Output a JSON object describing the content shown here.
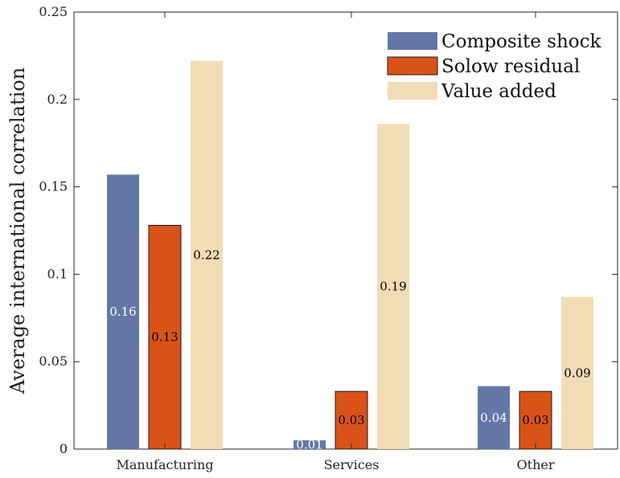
{
  "chart_data": {
    "type": "bar",
    "categories": [
      "Manufacturing",
      "Services",
      "Other"
    ],
    "series": [
      {
        "name": "Composite shock",
        "values": [
          0.157,
          0.005,
          0.036
        ],
        "labels": [
          "0.16",
          "0.01",
          "0.04"
        ],
        "color": "#6478a8",
        "label_color": "#ffffff"
      },
      {
        "name": "Solow residual",
        "values": [
          0.128,
          0.033,
          0.033
        ],
        "labels": [
          "0.13",
          "0.03",
          "0.03"
        ],
        "color": "#d95319",
        "label_color": "#000000"
      },
      {
        "name": "Value added",
        "values": [
          0.222,
          0.186,
          0.087
        ],
        "labels": [
          "0.22",
          "0.19",
          "0.09"
        ],
        "color": "#f2dcb6",
        "label_color": "#000000"
      }
    ],
    "ylabel": "Average international correlation",
    "xlabel": "",
    "ylim": [
      0,
      0.25
    ],
    "yticks": [
      0,
      0.05,
      0.1,
      0.15,
      0.2,
      0.25
    ],
    "ytick_labels": [
      "0",
      "0.05",
      "0.1",
      "0.15",
      "0.2",
      "0.25"
    ],
    "legend_position": "top-right",
    "grid": false
  }
}
